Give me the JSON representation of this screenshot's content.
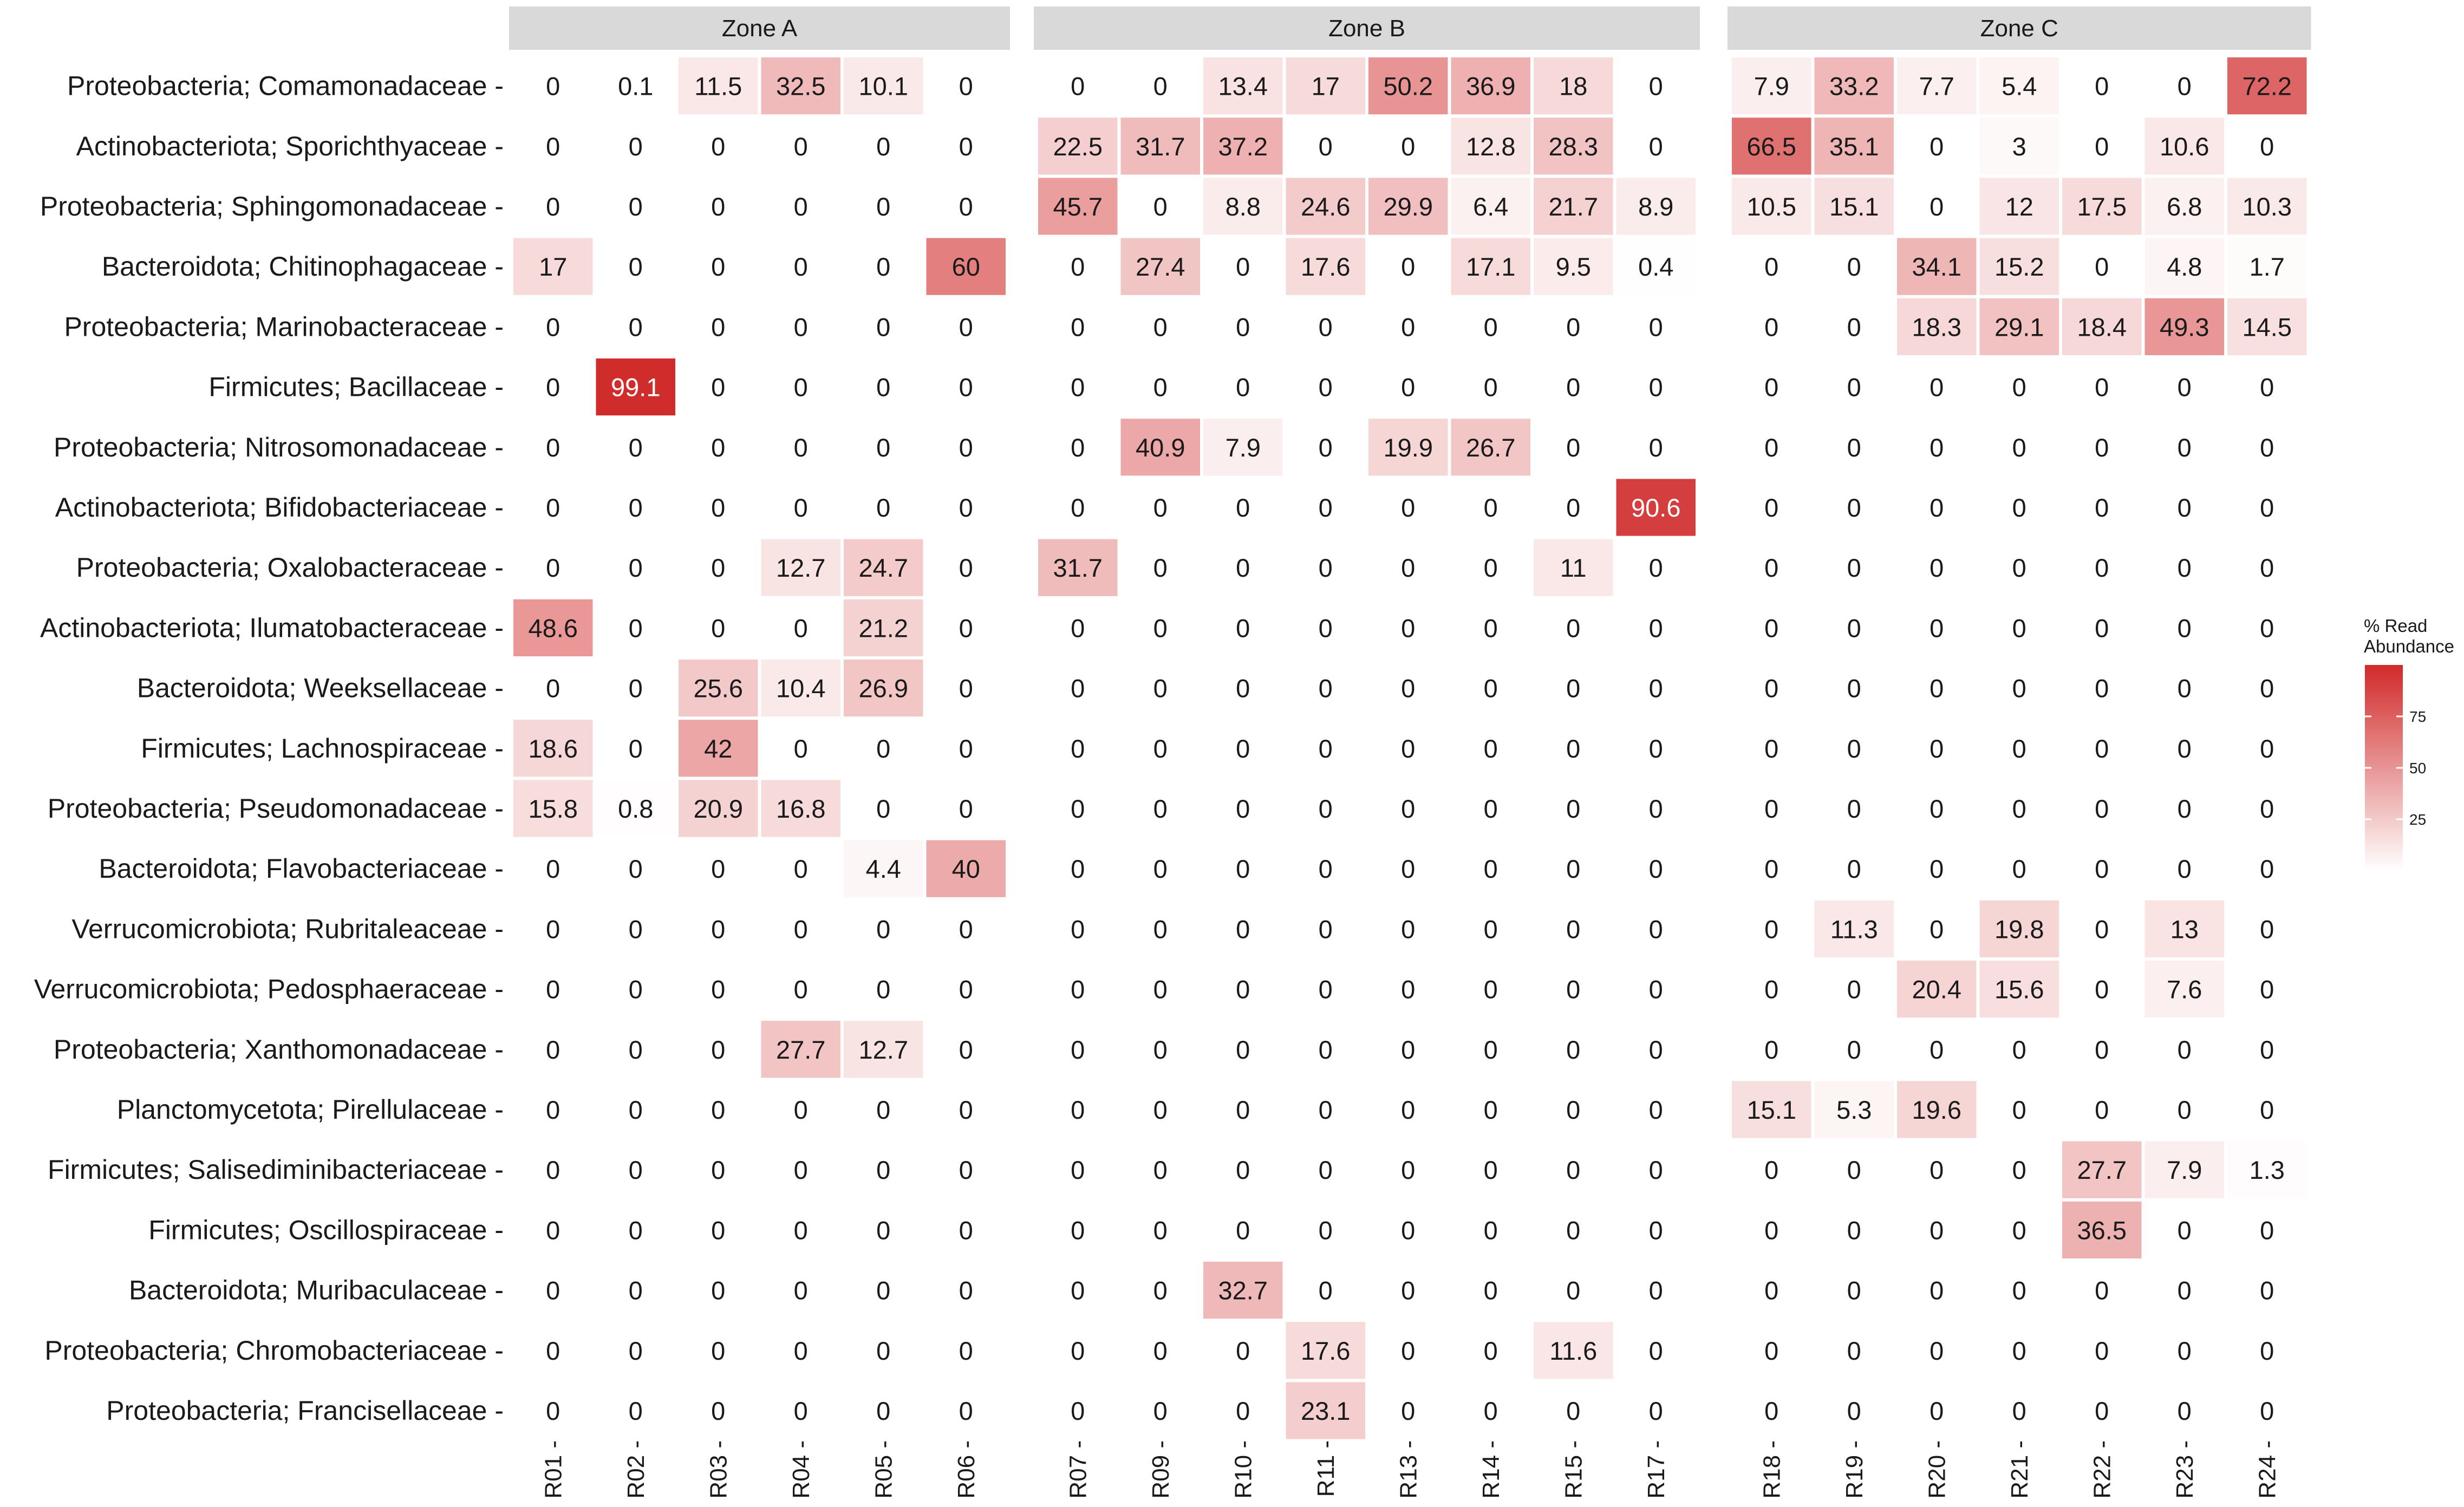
{
  "chart_data": {
    "type": "heatmap",
    "title": "",
    "xlabel": "",
    "ylabel": "",
    "zones": [
      {
        "label": "Zone A",
        "columns": [
          "R01",
          "R02",
          "R03",
          "R04",
          "R05",
          "R06"
        ]
      },
      {
        "label": "Zone B",
        "columns": [
          "R07",
          "R09",
          "R10",
          "R11",
          "R13",
          "R14",
          "R15",
          "R17"
        ]
      },
      {
        "label": "Zone C",
        "columns": [
          "R18",
          "R19",
          "R20",
          "R21",
          "R22",
          "R23",
          "R24"
        ]
      }
    ],
    "rows": [
      {
        "label": "Proteobacteria; Comamonadaceae",
        "values": [
          "0",
          "0.1",
          "11.5",
          "32.5",
          "10.1",
          "0",
          "0",
          "0",
          "13.4",
          "17",
          "50.2",
          "36.9",
          "18",
          "0",
          "7.9",
          "33.2",
          "7.7",
          "5.4",
          "0",
          "0",
          "72.2"
        ]
      },
      {
        "label": "Actinobacteriota; Sporichthyaceae",
        "values": [
          "0",
          "0",
          "0",
          "0",
          "0",
          "0",
          "22.5",
          "31.7",
          "37.2",
          "0",
          "0",
          "12.8",
          "28.3",
          "0",
          "66.5",
          "35.1",
          "0",
          "3",
          "0",
          "10.6",
          "0"
        ]
      },
      {
        "label": "Proteobacteria; Sphingomonadaceae",
        "values": [
          "0",
          "0",
          "0",
          "0",
          "0",
          "0",
          "45.7",
          "0",
          "8.8",
          "24.6",
          "29.9",
          "6.4",
          "21.7",
          "8.9",
          "10.5",
          "15.1",
          "0",
          "12",
          "17.5",
          "6.8",
          "10.3"
        ]
      },
      {
        "label": "Bacteroidota; Chitinophagaceae",
        "values": [
          "17",
          "0",
          "0",
          "0",
          "0",
          "60",
          "0",
          "27.4",
          "0",
          "17.6",
          "0",
          "17.1",
          "9.5",
          "0.4",
          "0",
          "0",
          "34.1",
          "15.2",
          "0",
          "4.8",
          "1.7"
        ]
      },
      {
        "label": "Proteobacteria; Marinobacteraceae",
        "values": [
          "0",
          "0",
          "0",
          "0",
          "0",
          "0",
          "0",
          "0",
          "0",
          "0",
          "0",
          "0",
          "0",
          "0",
          "0",
          "0",
          "18.3",
          "29.1",
          "18.4",
          "49.3",
          "14.5"
        ]
      },
      {
        "label": "Firmicutes; Bacillaceae",
        "values": [
          "0",
          "99.1",
          "0",
          "0",
          "0",
          "0",
          "0",
          "0",
          "0",
          "0",
          "0",
          "0",
          "0",
          "0",
          "0",
          "0",
          "0",
          "0",
          "0",
          "0",
          "0"
        ]
      },
      {
        "label": "Proteobacteria; Nitrosomonadaceae",
        "values": [
          "0",
          "0",
          "0",
          "0",
          "0",
          "0",
          "0",
          "40.9",
          "7.9",
          "0",
          "19.9",
          "26.7",
          "0",
          "0",
          "0",
          "0",
          "0",
          "0",
          "0",
          "0",
          "0"
        ]
      },
      {
        "label": "Actinobacteriota; Bifidobacteriaceae",
        "values": [
          "0",
          "0",
          "0",
          "0",
          "0",
          "0",
          "0",
          "0",
          "0",
          "0",
          "0",
          "0",
          "0",
          "90.6",
          "0",
          "0",
          "0",
          "0",
          "0",
          "0",
          "0"
        ]
      },
      {
        "label": "Proteobacteria; Oxalobacteraceae",
        "values": [
          "0",
          "0",
          "0",
          "12.7",
          "24.7",
          "0",
          "31.7",
          "0",
          "0",
          "0",
          "0",
          "0",
          "11",
          "0",
          "0",
          "0",
          "0",
          "0",
          "0",
          "0",
          "0"
        ]
      },
      {
        "label": "Actinobacteriota; Ilumatobacteraceae",
        "values": [
          "48.6",
          "0",
          "0",
          "0",
          "21.2",
          "0",
          "0",
          "0",
          "0",
          "0",
          "0",
          "0",
          "0",
          "0",
          "0",
          "0",
          "0",
          "0",
          "0",
          "0",
          "0"
        ]
      },
      {
        "label": "Bacteroidota; Weeksellaceae",
        "values": [
          "0",
          "0",
          "25.6",
          "10.4",
          "26.9",
          "0",
          "0",
          "0",
          "0",
          "0",
          "0",
          "0",
          "0",
          "0",
          "0",
          "0",
          "0",
          "0",
          "0",
          "0",
          "0"
        ]
      },
      {
        "label": "Firmicutes; Lachnospiraceae",
        "values": [
          "18.6",
          "0",
          "42",
          "0",
          "0",
          "0",
          "0",
          "0",
          "0",
          "0",
          "0",
          "0",
          "0",
          "0",
          "0",
          "0",
          "0",
          "0",
          "0",
          "0",
          "0"
        ]
      },
      {
        "label": "Proteobacteria; Pseudomonadaceae",
        "values": [
          "15.8",
          "0.8",
          "20.9",
          "16.8",
          "0",
          "0",
          "0",
          "0",
          "0",
          "0",
          "0",
          "0",
          "0",
          "0",
          "0",
          "0",
          "0",
          "0",
          "0",
          "0",
          "0"
        ]
      },
      {
        "label": "Bacteroidota; Flavobacteriaceae",
        "values": [
          "0",
          "0",
          "0",
          "0",
          "4.4",
          "40",
          "0",
          "0",
          "0",
          "0",
          "0",
          "0",
          "0",
          "0",
          "0",
          "0",
          "0",
          "0",
          "0",
          "0",
          "0"
        ]
      },
      {
        "label": "Verrucomicrobiota; Rubritaleaceae",
        "values": [
          "0",
          "0",
          "0",
          "0",
          "0",
          "0",
          "0",
          "0",
          "0",
          "0",
          "0",
          "0",
          "0",
          "0",
          "0",
          "11.3",
          "0",
          "19.8",
          "0",
          "13",
          "0"
        ]
      },
      {
        "label": "Verrucomicrobiota; Pedosphaeraceae",
        "values": [
          "0",
          "0",
          "0",
          "0",
          "0",
          "0",
          "0",
          "0",
          "0",
          "0",
          "0",
          "0",
          "0",
          "0",
          "0",
          "0",
          "20.4",
          "15.6",
          "0",
          "7.6",
          "0"
        ]
      },
      {
        "label": "Proteobacteria; Xanthomonadaceae",
        "values": [
          "0",
          "0",
          "0",
          "27.7",
          "12.7",
          "0",
          "0",
          "0",
          "0",
          "0",
          "0",
          "0",
          "0",
          "0",
          "0",
          "0",
          "0",
          "0",
          "0",
          "0",
          "0"
        ]
      },
      {
        "label": "Planctomycetota; Pirellulaceae",
        "values": [
          "0",
          "0",
          "0",
          "0",
          "0",
          "0",
          "0",
          "0",
          "0",
          "0",
          "0",
          "0",
          "0",
          "0",
          "15.1",
          "5.3",
          "19.6",
          "0",
          "0",
          "0",
          "0"
        ]
      },
      {
        "label": "Firmicutes; Salisediminibacteriaceae",
        "values": [
          "0",
          "0",
          "0",
          "0",
          "0",
          "0",
          "0",
          "0",
          "0",
          "0",
          "0",
          "0",
          "0",
          "0",
          "0",
          "0",
          "0",
          "0",
          "27.7",
          "7.9",
          "1.3"
        ]
      },
      {
        "label": "Firmicutes; Oscillospiraceae",
        "values": [
          "0",
          "0",
          "0",
          "0",
          "0",
          "0",
          "0",
          "0",
          "0",
          "0",
          "0",
          "0",
          "0",
          "0",
          "0",
          "0",
          "0",
          "0",
          "36.5",
          "0",
          "0"
        ]
      },
      {
        "label": "Bacteroidota; Muribaculaceae",
        "values": [
          "0",
          "0",
          "0",
          "0",
          "0",
          "0",
          "0",
          "0",
          "32.7",
          "0",
          "0",
          "0",
          "0",
          "0",
          "0",
          "0",
          "0",
          "0",
          "0",
          "0",
          "0"
        ]
      },
      {
        "label": "Proteobacteria; Chromobacteriaceae",
        "values": [
          "0",
          "0",
          "0",
          "0",
          "0",
          "0",
          "0",
          "0",
          "0",
          "17.6",
          "0",
          "0",
          "11.6",
          "0",
          "0",
          "0",
          "0",
          "0",
          "0",
          "0",
          "0"
        ]
      },
      {
        "label": "Proteobacteria; Francisellaceae",
        "values": [
          "0",
          "0",
          "0",
          "0",
          "0",
          "0",
          "0",
          "0",
          "0",
          "23.1",
          "0",
          "0",
          "0",
          "0",
          "0",
          "0",
          "0",
          "0",
          "0",
          "0",
          "0"
        ]
      }
    ],
    "legend": {
      "title_lines": [
        "% Read",
        "Abundance"
      ],
      "ticks": [
        {
          "value": 75,
          "label": "75"
        },
        {
          "value": 50,
          "label": "50"
        },
        {
          "value": 25,
          "label": "25"
        }
      ],
      "range": [
        0,
        100
      ],
      "placement": "right"
    },
    "colors": {
      "low": "#ffffff",
      "high": "#d12a2a",
      "zone_strip": "#d9d9d9",
      "text_dark": "#1a1a1a",
      "text_light": "#ffffff"
    }
  }
}
